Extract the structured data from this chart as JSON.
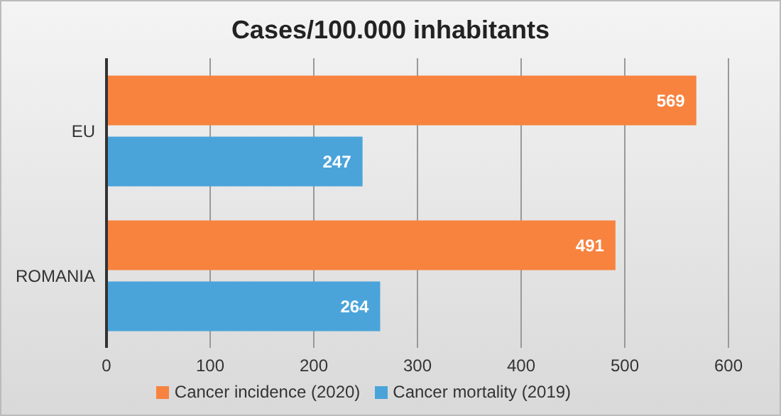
{
  "chart_data": {
    "type": "bar",
    "orientation": "horizontal",
    "title": "Cases/100.000 inhabitants",
    "categories": [
      "EU",
      "ROMANIA"
    ],
    "series": [
      {
        "name": "Cancer incidence (2020)",
        "color": "#f7833f",
        "values": [
          569,
          491
        ]
      },
      {
        "name": "Cancer mortality (2019)",
        "color": "#4aa4da",
        "values": [
          247,
          264
        ]
      }
    ],
    "xlim": [
      0,
      600
    ],
    "xticks": [
      0,
      100,
      200,
      300,
      400,
      500,
      600
    ],
    "grid": "x",
    "legend": "bottom",
    "data_labels": true
  }
}
